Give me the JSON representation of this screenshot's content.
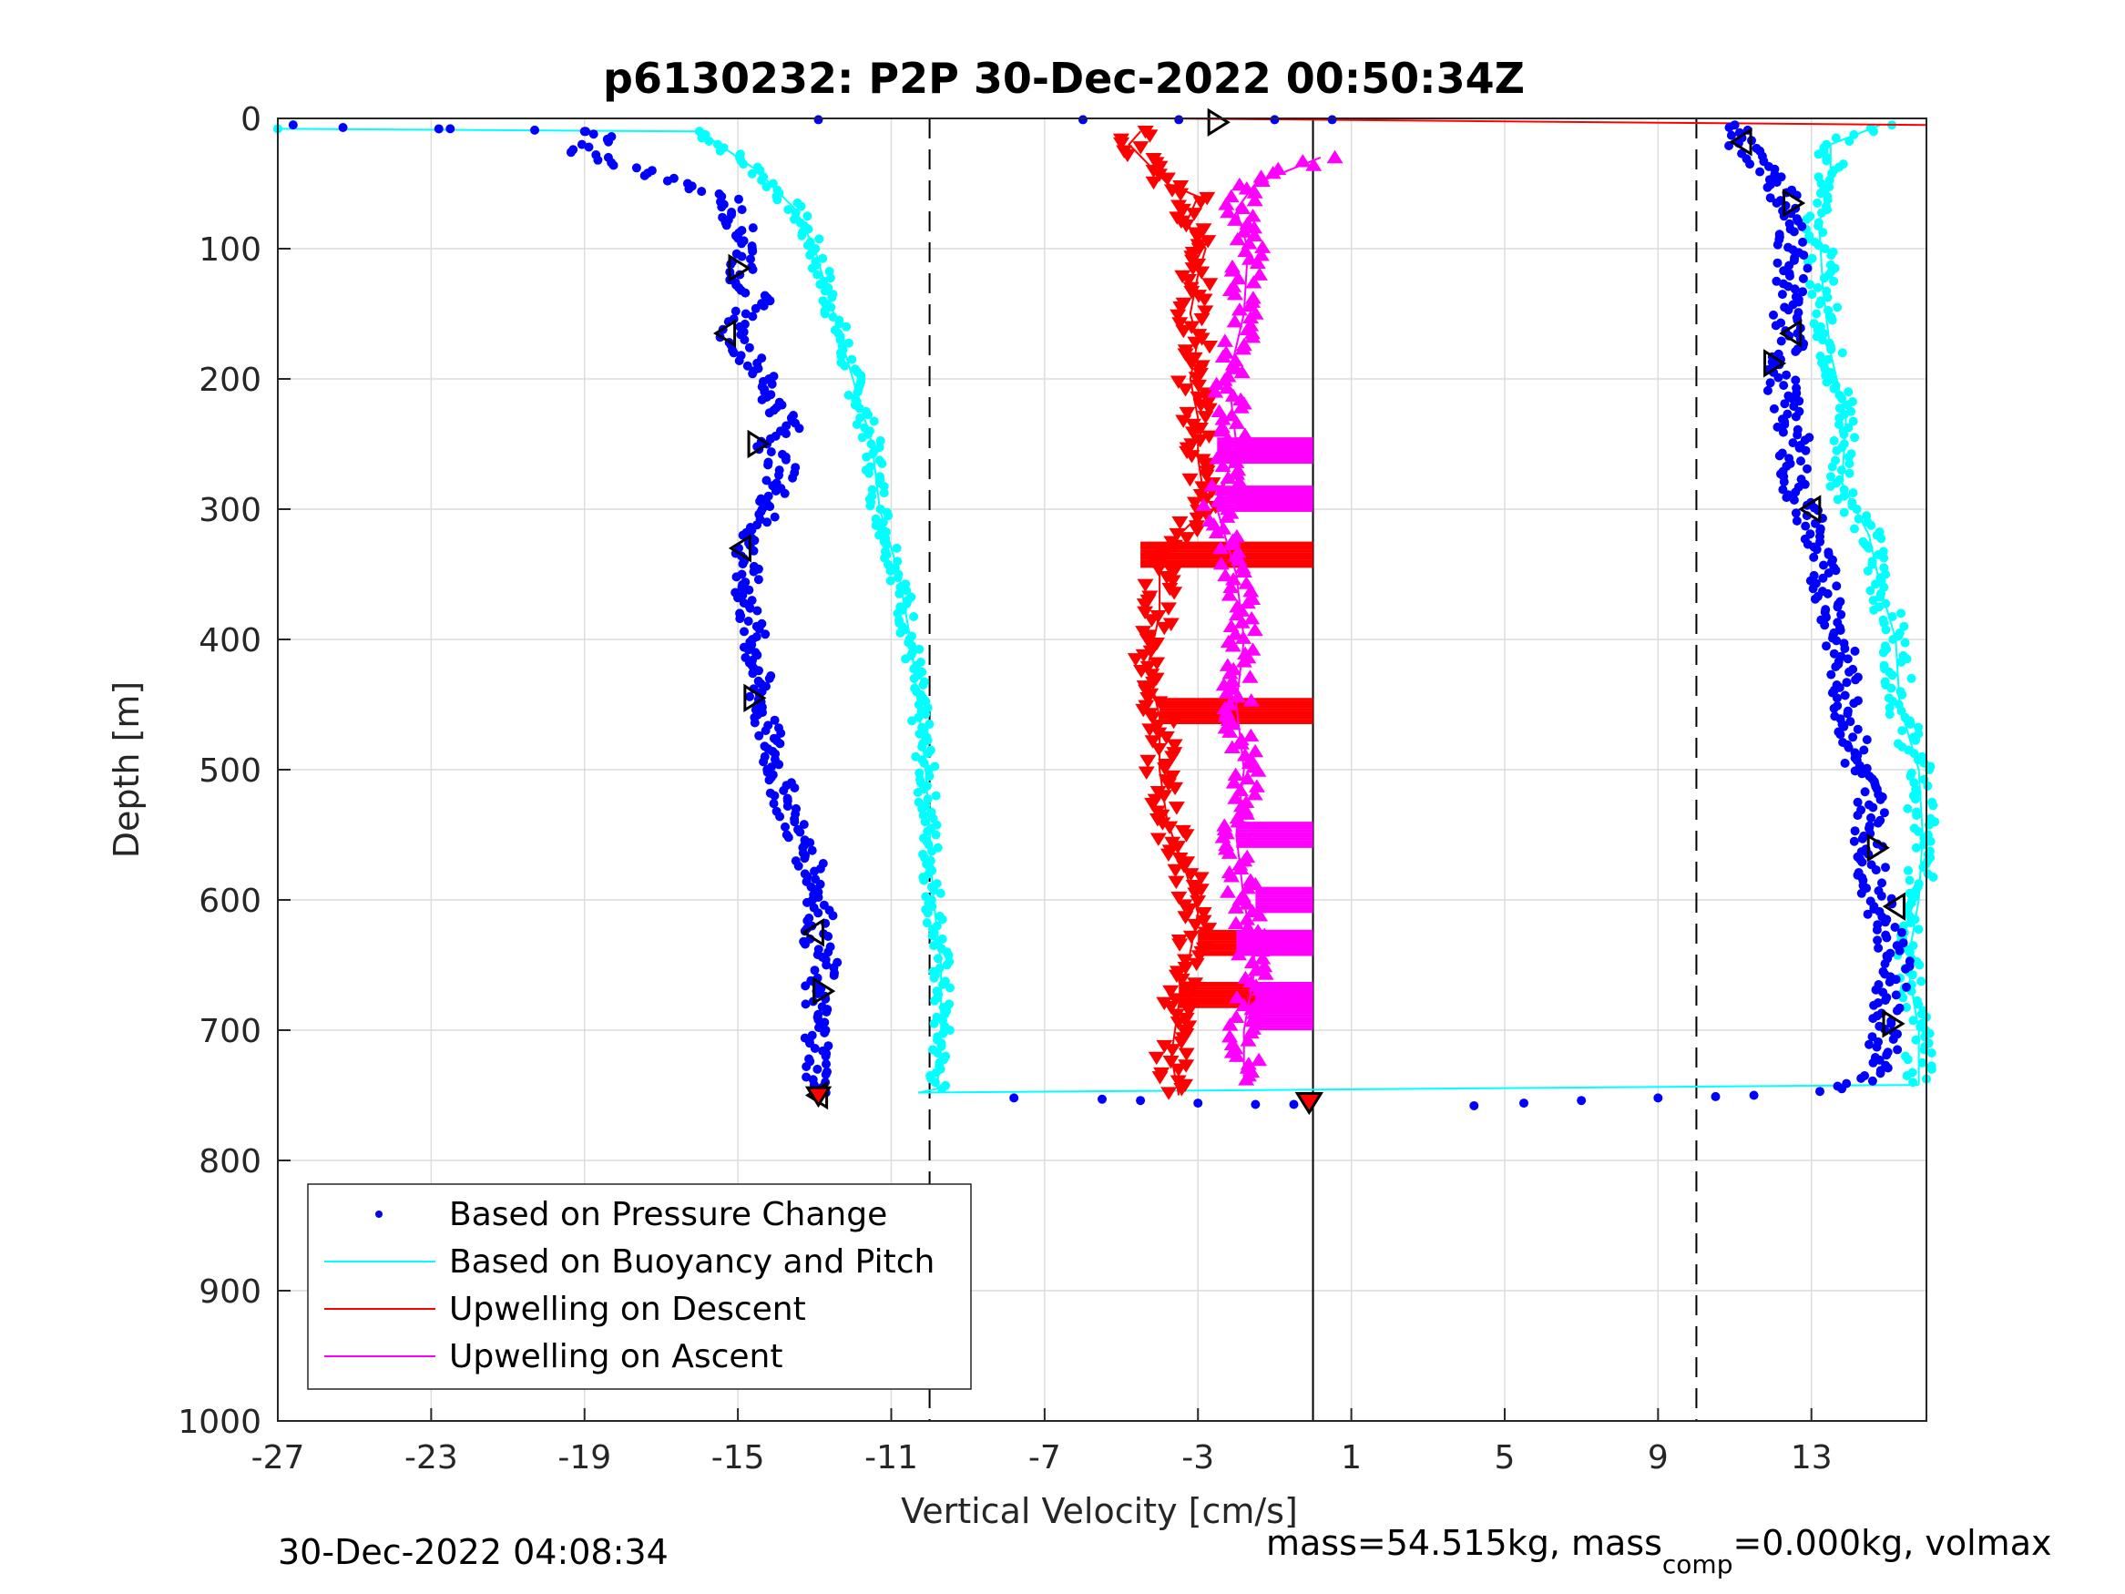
{
  "chart_data": {
    "type": "scatter",
    "title": "p6130232: P2P 30-Dec-2022 00:50:34Z",
    "xlabel": "Vertical Velocity [cm/s]",
    "ylabel": "Depth [m]",
    "xlim": [
      -27,
      16
    ],
    "ylim": [
      0,
      1000
    ],
    "y_reversed": true,
    "x_ticks": [
      -27,
      -23,
      -19,
      -15,
      -11,
      -7,
      -3,
      1,
      5,
      9,
      13
    ],
    "y_ticks": [
      0,
      100,
      200,
      300,
      400,
      500,
      600,
      700,
      800,
      900,
      1000
    ],
    "grid": true,
    "legend_position": "bottom-left",
    "reference_lines": {
      "dashed_x": [
        -10,
        10
      ],
      "solid_x": [
        0
      ]
    },
    "series": [
      {
        "name": "Based on Pressure Change",
        "style": "dots",
        "color": "#0000ff",
        "descent": [
          [
            -26.6,
            5
          ],
          [
            -25.3,
            7
          ],
          [
            -22.8,
            8
          ],
          [
            -20.3,
            9
          ],
          [
            -19.0,
            10
          ],
          [
            -18.5,
            15
          ],
          [
            -19.2,
            25
          ],
          [
            -18.6,
            30
          ],
          [
            -17.5,
            40
          ],
          [
            -16.5,
            50
          ],
          [
            -15.3,
            60
          ],
          [
            -15.0,
            80
          ],
          [
            -14.7,
            100
          ],
          [
            -15.0,
            120
          ],
          [
            -14.5,
            140
          ],
          [
            -15.2,
            165
          ],
          [
            -14.5,
            190
          ],
          [
            -14.0,
            220
          ],
          [
            -13.6,
            235
          ],
          [
            -14.2,
            250
          ],
          [
            -13.8,
            270
          ],
          [
            -14.2,
            300
          ],
          [
            -14.8,
            330
          ],
          [
            -14.8,
            360
          ],
          [
            -14.6,
            400
          ],
          [
            -14.4,
            450
          ],
          [
            -14.0,
            500
          ],
          [
            -13.6,
            540
          ],
          [
            -13.0,
            580
          ],
          [
            -12.8,
            610
          ],
          [
            -13.0,
            630
          ],
          [
            -12.7,
            650
          ],
          [
            -13.0,
            670
          ],
          [
            -12.9,
            700
          ],
          [
            -12.9,
            730
          ],
          [
            -12.9,
            745
          ]
        ],
        "ascent": [
          [
            13.0,
            748
          ],
          [
            14.5,
            740
          ],
          [
            14.8,
            720
          ],
          [
            15.0,
            700
          ],
          [
            15.0,
            680
          ],
          [
            15.2,
            650
          ],
          [
            15.0,
            620
          ],
          [
            14.7,
            600
          ],
          [
            14.5,
            560
          ],
          [
            14.6,
            520
          ],
          [
            14.2,
            500
          ],
          [
            14.0,
            460
          ],
          [
            13.8,
            420
          ],
          [
            13.6,
            380
          ],
          [
            13.2,
            340
          ],
          [
            13.0,
            310
          ],
          [
            12.5,
            280
          ],
          [
            12.6,
            250
          ],
          [
            12.3,
            220
          ],
          [
            12.2,
            190
          ],
          [
            12.5,
            170
          ],
          [
            12.3,
            150
          ],
          [
            12.5,
            120
          ],
          [
            12.5,
            90
          ],
          [
            12.3,
            60
          ],
          [
            12.0,
            40
          ],
          [
            11.3,
            25
          ],
          [
            11.0,
            15
          ],
          [
            11.2,
            5
          ]
        ],
        "transit_points": [
          [
            -7.8,
            752
          ],
          [
            -5.5,
            753
          ],
          [
            -4.5,
            754
          ],
          [
            -3.0,
            756
          ],
          [
            -1.5,
            757
          ],
          [
            -0.5,
            757
          ],
          [
            4.2,
            758
          ],
          [
            5.5,
            756
          ],
          [
            7.0,
            754
          ],
          [
            9.0,
            752
          ],
          [
            10.5,
            751
          ],
          [
            11.5,
            750
          ],
          [
            -6.0,
            1
          ],
          [
            -3.5,
            1
          ],
          [
            -1.0,
            1
          ],
          [
            0.5,
            1
          ],
          [
            -12.9,
            1
          ]
        ]
      },
      {
        "name": "Based on Buoyancy and Pitch",
        "style": "line-dots",
        "color": "#00ffff",
        "descent": [
          [
            -27.0,
            8
          ],
          [
            -16.0,
            10
          ],
          [
            -15.5,
            20
          ],
          [
            -14.5,
            40
          ],
          [
            -13.5,
            70
          ],
          [
            -13.0,
            100
          ],
          [
            -12.5,
            150
          ],
          [
            -12.0,
            200
          ],
          [
            -11.5,
            250
          ],
          [
            -11.3,
            300
          ],
          [
            -10.8,
            350
          ],
          [
            -10.5,
            400
          ],
          [
            -10.3,
            450
          ],
          [
            -10.1,
            500
          ],
          [
            -10.0,
            550
          ],
          [
            -9.9,
            600
          ],
          [
            -9.7,
            650
          ],
          [
            -9.7,
            700
          ],
          [
            -9.8,
            745
          ],
          [
            -10.3,
            748
          ]
        ],
        "ascent": [
          [
            15.8,
            742
          ],
          [
            15.8,
            700
          ],
          [
            15.5,
            650
          ],
          [
            15.8,
            600
          ],
          [
            15.9,
            550
          ],
          [
            15.8,
            500
          ],
          [
            15.3,
            450
          ],
          [
            15.2,
            400
          ],
          [
            14.8,
            360
          ],
          [
            14.5,
            320
          ],
          [
            13.8,
            280
          ],
          [
            13.9,
            230
          ],
          [
            13.5,
            180
          ],
          [
            13.3,
            130
          ],
          [
            13.2,
            80
          ],
          [
            13.5,
            50
          ],
          [
            13.5,
            20
          ],
          [
            14.8,
            5
          ]
        ],
        "transit_line": [
          [
            -10.3,
            748
          ],
          [
            15.8,
            742
          ]
        ]
      },
      {
        "name": "Upwelling on Descent",
        "style": "line-down-triangles",
        "color": "#ff0000",
        "values": [
          [
            -4.5,
            10
          ],
          [
            -4.8,
            20
          ],
          [
            -4.3,
            35
          ],
          [
            -3.8,
            50
          ],
          [
            -3.0,
            60
          ],
          [
            -3.3,
            80
          ],
          [
            -2.8,
            100
          ],
          [
            -3.0,
            120
          ],
          [
            -3.2,
            150
          ],
          [
            -3.0,
            170
          ],
          [
            -3.2,
            200
          ],
          [
            -3.0,
            230
          ],
          [
            -3.0,
            260
          ],
          [
            -2.8,
            300
          ],
          [
            -3.5,
            320
          ],
          [
            -4.0,
            340
          ],
          [
            -4.0,
            380
          ],
          [
            -4.3,
            420
          ],
          [
            -4.0,
            460
          ],
          [
            -4.0,
            500
          ],
          [
            -3.8,
            540
          ],
          [
            -3.3,
            580
          ],
          [
            -3.0,
            610
          ],
          [
            -3.2,
            640
          ],
          [
            -3.5,
            680
          ],
          [
            -3.7,
            720
          ],
          [
            -3.5,
            750
          ]
        ],
        "stripes": [
          [
            -2.0,
            0.0,
            255
          ],
          [
            -2.0,
            0.0,
            292
          ],
          [
            -4.5,
            0.0,
            335
          ],
          [
            -4.0,
            0.0,
            455
          ],
          [
            -3.0,
            0.0,
            633
          ],
          [
            -3.5,
            0.0,
            673
          ]
        ],
        "top_spike": [
          [
            -4.0,
            0
          ],
          [
            16.0,
            5
          ]
        ]
      },
      {
        "name": "Upwelling on Ascent",
        "style": "line-up-triangles",
        "color": "#ff00ff",
        "values": [
          [
            0.2,
            30
          ],
          [
            -1.5,
            50
          ],
          [
            -2.0,
            70
          ],
          [
            -1.7,
            100
          ],
          [
            -1.8,
            150
          ],
          [
            -2.2,
            200
          ],
          [
            -2.0,
            250
          ],
          [
            -2.5,
            300
          ],
          [
            -2.0,
            350
          ],
          [
            -1.8,
            400
          ],
          [
            -2.0,
            450
          ],
          [
            -1.8,
            500
          ],
          [
            -2.0,
            550
          ],
          [
            -1.8,
            600
          ],
          [
            -1.5,
            650
          ],
          [
            -1.8,
            700
          ],
          [
            -1.8,
            740
          ]
        ],
        "stripes": [
          [
            -2.5,
            0.0,
            255
          ],
          [
            -2.5,
            0.0,
            292
          ],
          [
            -2.0,
            0.0,
            550
          ],
          [
            -1.5,
            0.0,
            600
          ],
          [
            -2.0,
            0.0,
            633
          ],
          [
            -1.5,
            0.0,
            673
          ],
          [
            -1.5,
            0.0,
            690
          ]
        ]
      }
    ],
    "markers": {
      "descent": [
        [
          -15.0,
          115
        ],
        [
          -15.3,
          165
        ],
        [
          -14.5,
          250
        ],
        [
          -14.9,
          330
        ],
        [
          -14.6,
          445
        ],
        [
          -13.0,
          625
        ],
        [
          -12.8,
          670
        ],
        [
          -12.9,
          750
        ]
      ],
      "ascent": [
        [
          11.2,
          18
        ],
        [
          12.5,
          65
        ],
        [
          12.5,
          165
        ],
        [
          12.0,
          188
        ],
        [
          13.0,
          300
        ],
        [
          14.7,
          560
        ],
        [
          15.2,
          605
        ],
        [
          15.1,
          695
        ]
      ],
      "surface_triangle": [
        -2.5,
        3
      ],
      "bottom_triangle": [
        -0.1,
        755
      ]
    },
    "legend": [
      "Based on Pressure Change",
      "Based on Buoyancy and Pitch",
      "Upwelling on Descent",
      "Upwelling on Ascent"
    ],
    "footer_left": "30-Dec-2022 04:08:34",
    "footer_right": {
      "prefix": "mass=54.515kg, mass",
      "subscript": "comp",
      "suffix": "=0.000kg, volmax"
    }
  }
}
